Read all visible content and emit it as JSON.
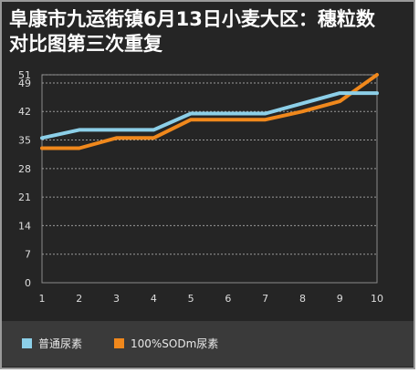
{
  "chart_data": {
    "type": "line",
    "title_line1": "阜康市九运街镇6月13日小麦大区：穗粒数",
    "title_line2": "对比图第三次重复",
    "x": [
      1,
      2,
      3,
      4,
      5,
      6,
      7,
      8,
      9,
      10
    ],
    "y_ticks": [
      0,
      7,
      14,
      21,
      28,
      35,
      42,
      49,
      51
    ],
    "x_ticks": [
      "1",
      "2",
      "3",
      "4",
      "5",
      "6",
      "7",
      "8",
      "9",
      "10"
    ],
    "ylim": [
      0,
      51
    ],
    "grid": true,
    "legend_position": "bottom",
    "series": [
      {
        "name": "普通尿素",
        "color": "#8ccfe8",
        "values": [
          35.5,
          37.5,
          37.5,
          37.5,
          41.5,
          41.5,
          41.5,
          44,
          46.5,
          46.5
        ]
      },
      {
        "name": "100%SODm尿素",
        "color": "#f0881c",
        "values": [
          33,
          33,
          35.5,
          35.5,
          40,
          40,
          40,
          42,
          44.5,
          51
        ]
      }
    ]
  }
}
